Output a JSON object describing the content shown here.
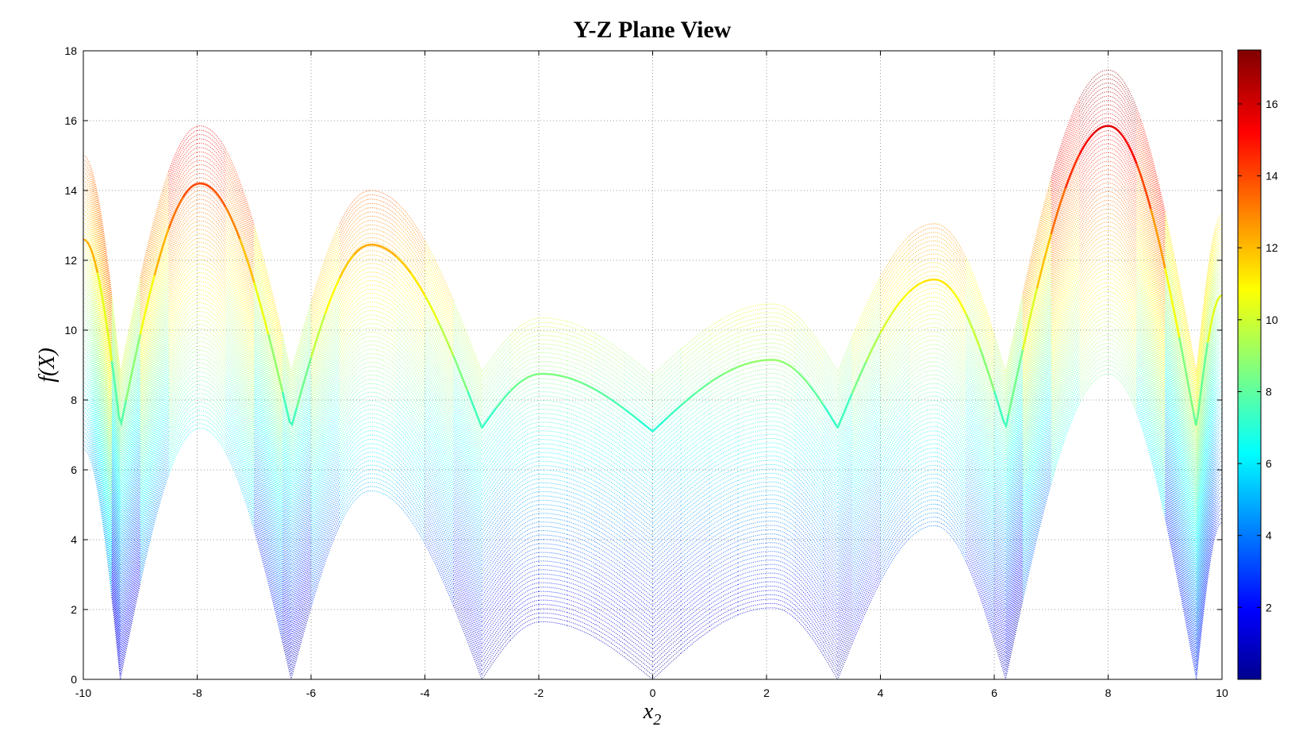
{
  "chart_data": {
    "type": "scatter",
    "title": "Y-Z Plane View",
    "xlabel": "x",
    "xlabel_subscript": "2",
    "ylabel": "f(X)",
    "xlim": [
      -10,
      10
    ],
    "ylim": [
      0,
      18
    ],
    "xticks": [
      "-10",
      "-8",
      "-6",
      "-4",
      "-2",
      "0",
      "2",
      "4",
      "6",
      "8",
      "10"
    ],
    "yticks": [
      "0",
      "2",
      "4",
      "6",
      "8",
      "10",
      "12",
      "14",
      "16",
      "18"
    ],
    "grid": true,
    "colormap": "jet",
    "colorbar": {
      "range": [
        0,
        17.5
      ],
      "ticks": [
        "2",
        "4",
        "6",
        "8",
        "10",
        "12",
        "14",
        "16"
      ],
      "placement": "right"
    },
    "envelopes": {
      "x": [
        -10,
        -9.35,
        -7.95,
        -6.35,
        -4.95,
        -3.0,
        -1.95,
        0,
        2.1,
        3.25,
        4.95,
        6.2,
        8.0,
        9.55,
        10
      ],
      "upper": [
        15.0,
        8.8,
        15.85,
        8.8,
        14.0,
        8.8,
        10.35,
        8.7,
        10.75,
        8.8,
        13.05,
        8.8,
        17.45,
        8.8,
        13.3
      ],
      "middle": [
        12.6,
        7.2,
        14.2,
        7.2,
        12.45,
        7.2,
        8.75,
        7.1,
        9.15,
        7.2,
        11.45,
        7.2,
        15.85,
        7.2,
        11.0
      ],
      "lower": [
        6.6,
        0,
        7.2,
        0,
        5.4,
        0,
        1.65,
        0,
        2.05,
        0,
        4.4,
        0,
        8.75,
        0,
        4.5
      ]
    }
  }
}
